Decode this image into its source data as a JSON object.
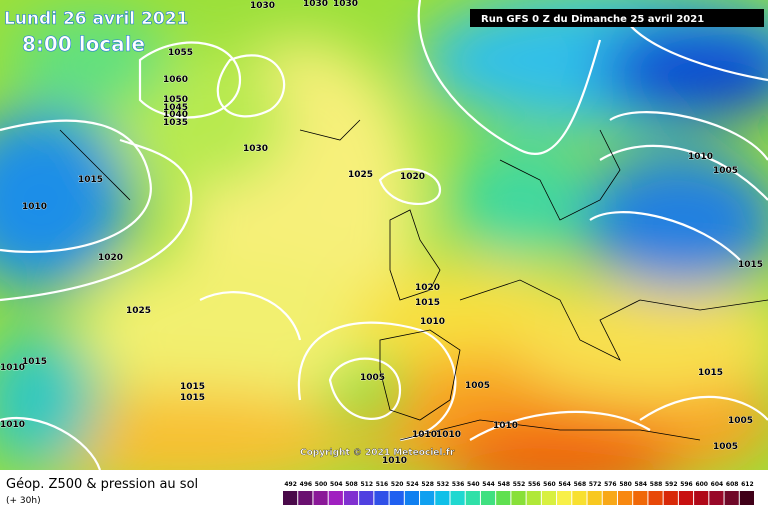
{
  "header": {
    "date": "Lundi 26 avril 2021",
    "time": "8:00 locale",
    "run": "Run GFS 0 Z du Dimanche 25 avril 2021"
  },
  "copyright": "Copyright © 2021 Meteociel.fr",
  "isobar_labels": [
    "1055",
    "1060",
    "1050",
    "1045",
    "1040",
    "1035",
    "1030",
    "1025",
    "1020",
    "1015",
    "1010",
    "1020",
    "1025",
    "1015",
    "1010",
    "1015",
    "1015",
    "1010",
    "1005",
    "1005",
    "1020",
    "1015",
    "1010",
    "1010",
    "1010",
    "1010",
    "1010",
    "1010",
    "1005",
    "1015",
    "1015",
    "1005",
    "1005",
    "1030",
    "1030",
    "1030"
  ],
  "legend": {
    "title": "Géop. Z500 & pression au sol",
    "lead": "(+ 30h)",
    "scale": [
      "492",
      "496",
      "500",
      "504",
      "508",
      "512",
      "516",
      "520",
      "524",
      "528",
      "532",
      "536",
      "540",
      "544",
      "548",
      "552",
      "556",
      "560",
      "564",
      "568",
      "572",
      "576",
      "580",
      "584",
      "588",
      "592",
      "596",
      "600",
      "604",
      "608",
      "612"
    ]
  }
}
